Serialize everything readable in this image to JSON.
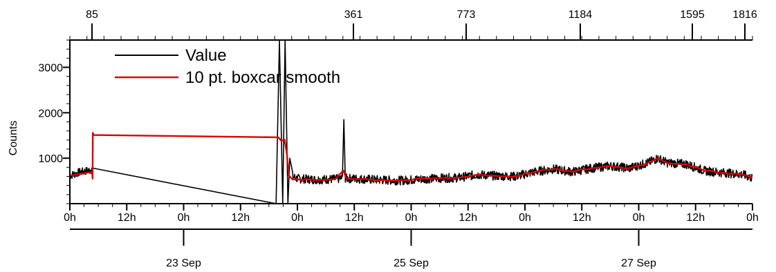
{
  "chart_data": {
    "type": "line",
    "title": "",
    "ylabel": "Counts",
    "ylim": [
      0,
      3600
    ],
    "y_ticks": [
      1000,
      2000,
      3000
    ],
    "x_unit": "hours since 0h 22 Sep",
    "xlim": [
      0,
      144
    ],
    "x_tick_labels": [
      "0h",
      "12h",
      "0h",
      "12h",
      "0h",
      "12h",
      "0h",
      "12h",
      "0h",
      "12h",
      "0h",
      "12h",
      "0h"
    ],
    "date_labels": [
      "23 Sep",
      "25 Sep",
      "27 Sep"
    ],
    "top_axis_labels": [
      "85",
      "361",
      "773",
      "1184",
      "1595",
      "1816"
    ],
    "grid": false,
    "legend": {
      "placement": "top-left"
    },
    "series": [
      {
        "name": "Value",
        "color": "#000000",
        "points": [
          [
            0,
            620
          ],
          [
            1,
            650
          ],
          [
            2,
            690
          ],
          [
            3,
            710
          ],
          [
            4,
            730
          ],
          [
            4.8,
            760
          ],
          [
            43.5,
            0
          ],
          [
            44.2,
            3600
          ],
          [
            44.9,
            0
          ],
          [
            45.4,
            3600
          ],
          [
            46.0,
            0
          ],
          [
            46.4,
            1000
          ],
          [
            47.0,
            600
          ],
          [
            48,
            550
          ],
          [
            52,
            530
          ],
          [
            56,
            540
          ],
          [
            57.5,
            560
          ],
          [
            57.8,
            1850
          ],
          [
            58.1,
            560
          ],
          [
            62,
            540
          ],
          [
            66,
            520
          ],
          [
            70,
            510
          ],
          [
            74,
            540
          ],
          [
            78,
            560
          ],
          [
            82,
            570
          ],
          [
            86,
            640
          ],
          [
            90,
            610
          ],
          [
            94,
            600
          ],
          [
            98,
            700
          ],
          [
            102,
            760
          ],
          [
            106,
            700
          ],
          [
            110,
            780
          ],
          [
            114,
            830
          ],
          [
            118,
            780
          ],
          [
            122,
            900
          ],
          [
            124,
            1000
          ],
          [
            126,
            900
          ],
          [
            130,
            870
          ],
          [
            134,
            720
          ],
          [
            138,
            680
          ],
          [
            142,
            640
          ],
          [
            144,
            560
          ]
        ]
      },
      {
        "name": "10 pt. boxcar smooth",
        "color": "#dd0000",
        "points": [
          [
            0,
            620
          ],
          [
            2,
            650
          ],
          [
            4.7,
            700
          ],
          [
            4.8,
            550
          ],
          [
            4.85,
            1560
          ],
          [
            5,
            1510
          ],
          [
            44,
            1460
          ],
          [
            44.6,
            1380
          ],
          [
            45.3,
            1410
          ],
          [
            45.8,
            1080
          ],
          [
            46.2,
            620
          ],
          [
            47,
            530
          ],
          [
            52,
            520
          ],
          [
            56,
            540
          ],
          [
            57.7,
            730
          ],
          [
            58.3,
            560
          ],
          [
            62,
            540
          ],
          [
            66,
            520
          ],
          [
            70,
            510
          ],
          [
            74,
            540
          ],
          [
            78,
            560
          ],
          [
            82,
            570
          ],
          [
            86,
            640
          ],
          [
            90,
            610
          ],
          [
            94,
            600
          ],
          [
            98,
            700
          ],
          [
            102,
            760
          ],
          [
            106,
            700
          ],
          [
            110,
            780
          ],
          [
            114,
            830
          ],
          [
            118,
            780
          ],
          [
            122,
            900
          ],
          [
            124,
            1000
          ],
          [
            126,
            900
          ],
          [
            130,
            870
          ],
          [
            134,
            720
          ],
          [
            138,
            680
          ],
          [
            142,
            640
          ],
          [
            144,
            570
          ]
        ]
      }
    ]
  }
}
